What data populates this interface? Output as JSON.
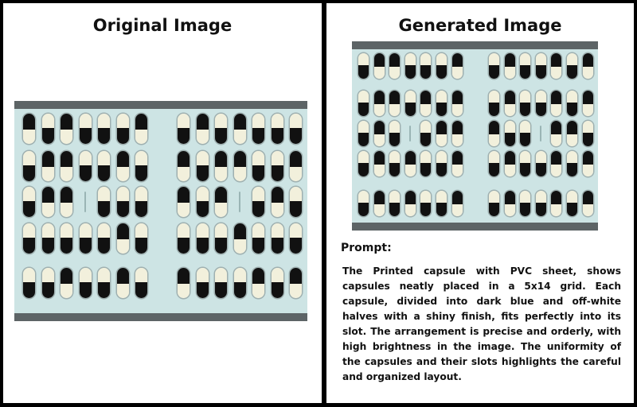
{
  "left_title": "Original Image",
  "right_title": "Generated Image",
  "prompt_heading": "Prompt:",
  "prompt_text": "The Printed capsule with PVC sheet, shows capsules neatly placed in a 5x14 grid. Each capsule, divided into dark blue and off-white halves with a shiny finish, fits perfectly into its slot. The arrangement is precise and orderly, with high brightness in the image. The uniformity of the capsules and their slots highlights the careful and organized layout.",
  "colors": {
    "dark": "#111111",
    "cream": "#f2f0dc",
    "sheet": "#cde4e4",
    "rail": "#5d6466"
  },
  "original_grid": [
    "WDWDDDW DWDWDDD",
    "DWWDDWD WDWWDDW",
    "DWW_DDD WDW_DWD",
    "DDDDDWD DDDWDDD",
    "DDWDDWD WDDDWDW"
  ],
  "generated_grid": [
    "DWWDDDW DWDDWDW",
    "DWWDWDW DWDDWDW",
    "DWD_DWW WDD_WWD",
    "DWDWDDW DWDDWDW",
    "DWDWDDW DWDDWDW"
  ]
}
